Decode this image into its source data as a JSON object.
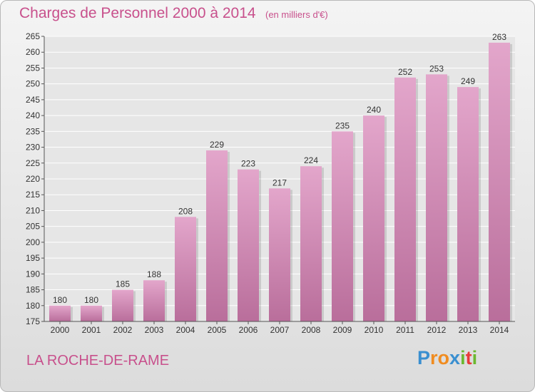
{
  "title": "Charges de Personnel 2000 à 2014",
  "subtitle": "(en milliers d'€)",
  "place": "LA ROCHE-DE-RAME",
  "logo": {
    "letters": [
      {
        "ch": "P",
        "color": "#3a8fd0"
      },
      {
        "ch": "r",
        "color": "#f08c20"
      },
      {
        "ch": "o",
        "color": "#f08c20"
      },
      {
        "ch": "x",
        "color": "#3a8fd0"
      },
      {
        "ch": "i",
        "color": "#6cb830"
      },
      {
        "ch": "t",
        "color": "#e83a3a"
      },
      {
        "ch": "i",
        "color": "#6cb830"
      }
    ]
  },
  "colors": {
    "bar_top": "#e3a6cb",
    "bar_bottom": "#b96e9b",
    "accent": "#c8508c"
  },
  "chart_data": {
    "type": "bar",
    "categories": [
      "2000",
      "2001",
      "2002",
      "2003",
      "2004",
      "2005",
      "2006",
      "2007",
      "2008",
      "2009",
      "2010",
      "2011",
      "2012",
      "2013",
      "2014"
    ],
    "values": [
      180,
      180,
      185,
      188,
      208,
      229,
      223,
      217,
      224,
      235,
      240,
      252,
      253,
      249,
      263
    ],
    "ylim": [
      175,
      265
    ],
    "yticks": [
      175,
      180,
      185,
      190,
      195,
      200,
      205,
      210,
      215,
      220,
      225,
      230,
      235,
      240,
      245,
      250,
      255,
      260,
      265
    ],
    "grid": true,
    "legend": "none"
  }
}
